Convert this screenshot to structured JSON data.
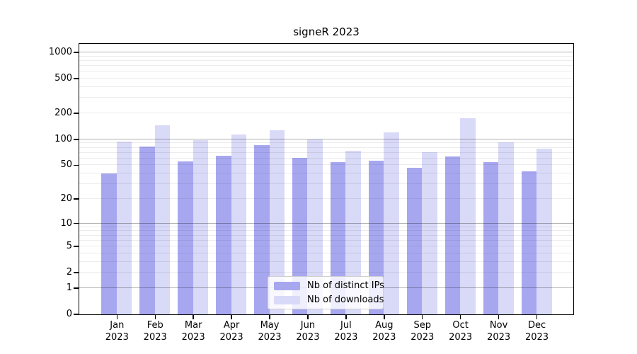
{
  "chart_data": {
    "type": "bar",
    "title": "signeR 2023",
    "year_label": "2023",
    "months": [
      "Jan",
      "Feb",
      "Mar",
      "Apr",
      "May",
      "Jun",
      "Jul",
      "Aug",
      "Sep",
      "Oct",
      "Nov",
      "Dec"
    ],
    "series": [
      {
        "name": "Nb of distinct IPs",
        "color": "#a7a7f0",
        "values": [
          40,
          82,
          55,
          64,
          85,
          61,
          54,
          56,
          46,
          63,
          54,
          42
        ]
      },
      {
        "name": "Nb of downloads",
        "color": "#d9d9f8",
        "values": [
          93,
          145,
          97,
          112,
          127,
          98,
          73,
          120,
          71,
          175,
          91,
          78
        ]
      }
    ],
    "y_axis": {
      "scale": "log10(value+1)",
      "tick_labels": [
        0,
        1,
        2,
        5,
        10,
        20,
        50,
        100,
        200,
        500,
        1000
      ],
      "range_top": 1200
    },
    "grid": {
      "major_at": [
        1,
        10,
        100,
        1000
      ],
      "minor_pattern": "2-9 per decade"
    },
    "legend_position": "bottom-center"
  }
}
